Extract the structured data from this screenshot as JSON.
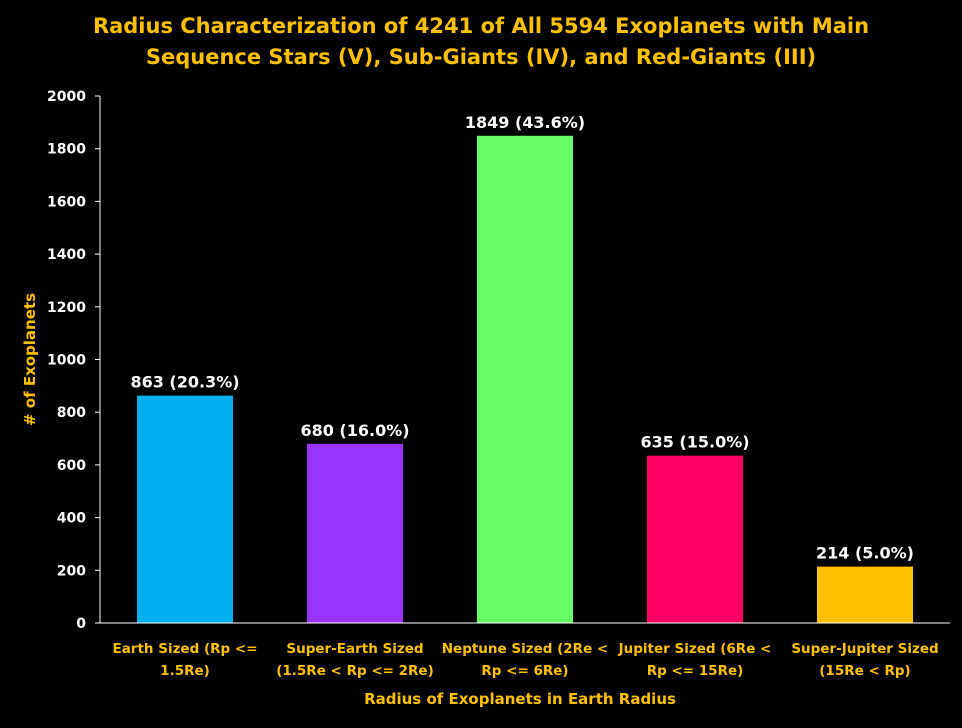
{
  "chart_data": {
    "type": "bar",
    "title": [
      "Radius Characterization of 4241 of All 5594 Exoplanets with Main",
      "Sequence Stars (V), Sub-Giants (IV), and Red-Giants (III)"
    ],
    "xlabel": "Radius of Exoplanets in Earth Radius",
    "ylabel": "# of Exoplanets",
    "ylim": [
      0,
      2000
    ],
    "yticks": [
      "0",
      "200",
      "400",
      "600",
      "800",
      "1000",
      "1200",
      "1400",
      "1600",
      "1800",
      "2000"
    ],
    "grid": false,
    "legend": "none",
    "categories": [
      [
        "Earth Sized (Rp <=",
        "1.5Re)"
      ],
      [
        "Super-Earth  Sized",
        "(1.5Re < Rp <= 2Re)"
      ],
      [
        "Neptune Sized (2Re <",
        "Rp <= 6Re)"
      ],
      [
        "Jupiter Sized (6Re <",
        "Rp <= 15Re)"
      ],
      [
        "Super-Jupiter Sized",
        "(15Re < Rp)"
      ]
    ],
    "values": [
      863,
      680,
      1849,
      635,
      214
    ],
    "data_labels": [
      "863 (20.3%)",
      "680 (16.0%)",
      "1849 (43.6%)",
      "635 (15.0%)",
      "214 (5.0%)"
    ],
    "colors": [
      "#00B0F0",
      "#9933FF",
      "#66FF66",
      "#FF0066",
      "#FFC000"
    ],
    "axis_color": "#FFFFFF"
  }
}
